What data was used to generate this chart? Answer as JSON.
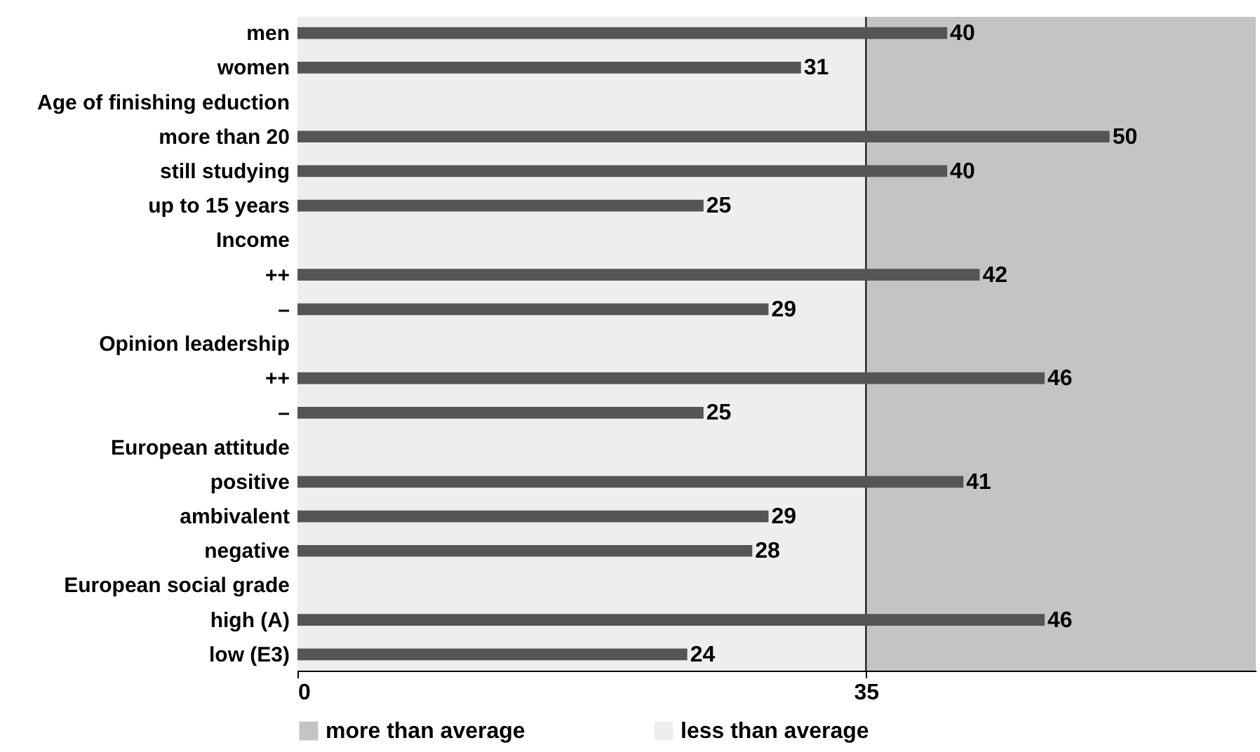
{
  "chart_data": {
    "type": "bar",
    "orientation": "horizontal",
    "categories": [
      "men",
      "women",
      "Age of finishing eduction",
      "more than 20",
      "still studying",
      "up to 15 years",
      "Income",
      "++",
      "–",
      "Opinion leadership",
      "++",
      "–",
      "European attitude",
      "positive",
      "ambivalent",
      "negative",
      "European social grade",
      "high (A)",
      "low (E3)"
    ],
    "values": [
      40,
      31,
      null,
      50,
      40,
      25,
      null,
      42,
      29,
      null,
      46,
      25,
      null,
      41,
      29,
      28,
      null,
      46,
      24
    ],
    "color": "#555555",
    "data_labels": true,
    "xlim": [
      0,
      59
    ],
    "xticks": [
      0,
      35
    ],
    "ref_lines": [
      {
        "axis": "x",
        "value": 35,
        "color": "#000000"
      }
    ],
    "bands": [
      {
        "axis": "x",
        "from": 35,
        "to": 59,
        "label": "more than average",
        "color": "#c4c4c4"
      },
      {
        "axis": "x",
        "from": 0,
        "to": 35,
        "label": "less than average",
        "color": "#eeeeee"
      }
    ],
    "legend": "bottom"
  }
}
